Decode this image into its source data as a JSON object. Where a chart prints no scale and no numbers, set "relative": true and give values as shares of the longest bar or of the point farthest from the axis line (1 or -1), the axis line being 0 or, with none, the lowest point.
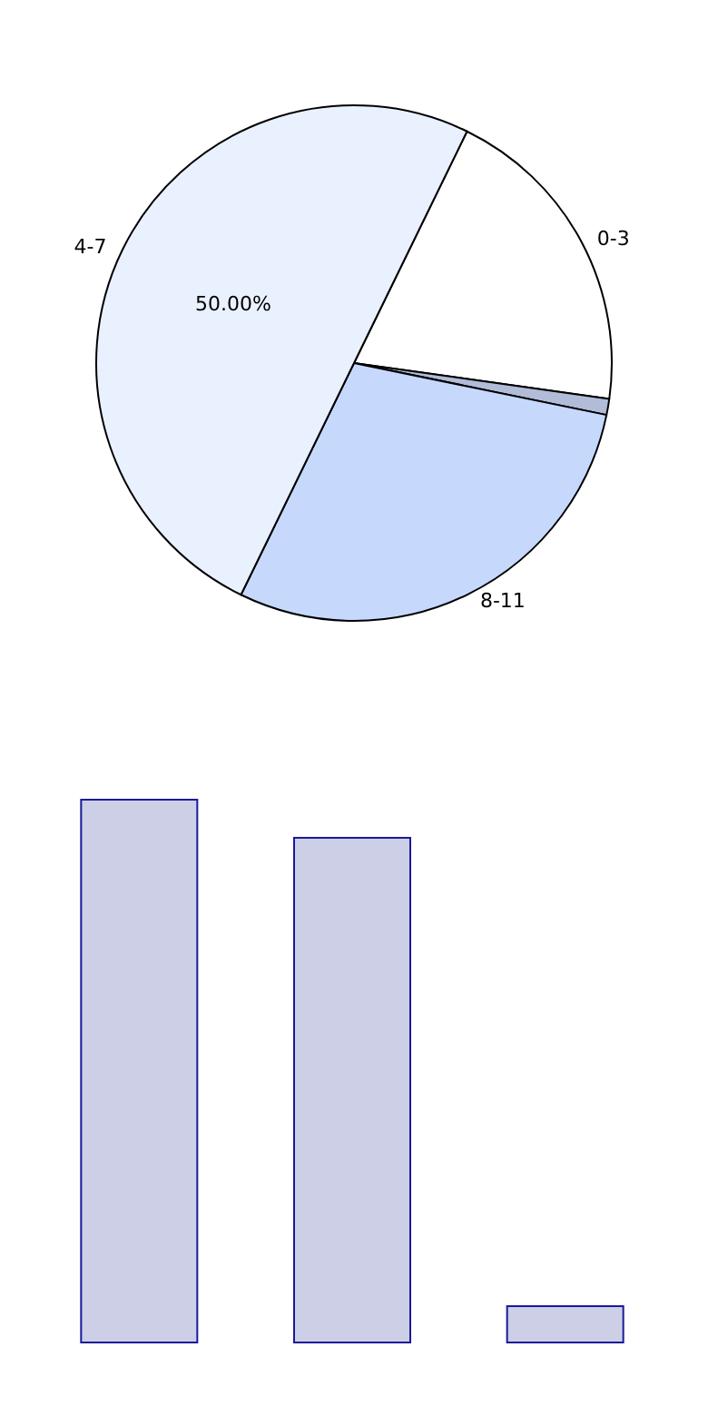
{
  "chart_data": [
    {
      "type": "pie",
      "categories": [
        "0-3",
        null,
        "8-11",
        "4-7"
      ],
      "values": [
        20,
        1,
        29,
        50
      ],
      "colors": [
        "#ffffff",
        "#b0bcd8",
        "#c6d9fd",
        "#eaf1fe"
      ],
      "value_labels": [
        null,
        null,
        null,
        "50.00%"
      ]
    },
    {
      "type": "bar",
      "relative": true,
      "categories": [
        null,
        null,
        null
      ],
      "values": [
        1,
        0.93,
        0.07
      ],
      "color": "#cccfe6"
    }
  ]
}
